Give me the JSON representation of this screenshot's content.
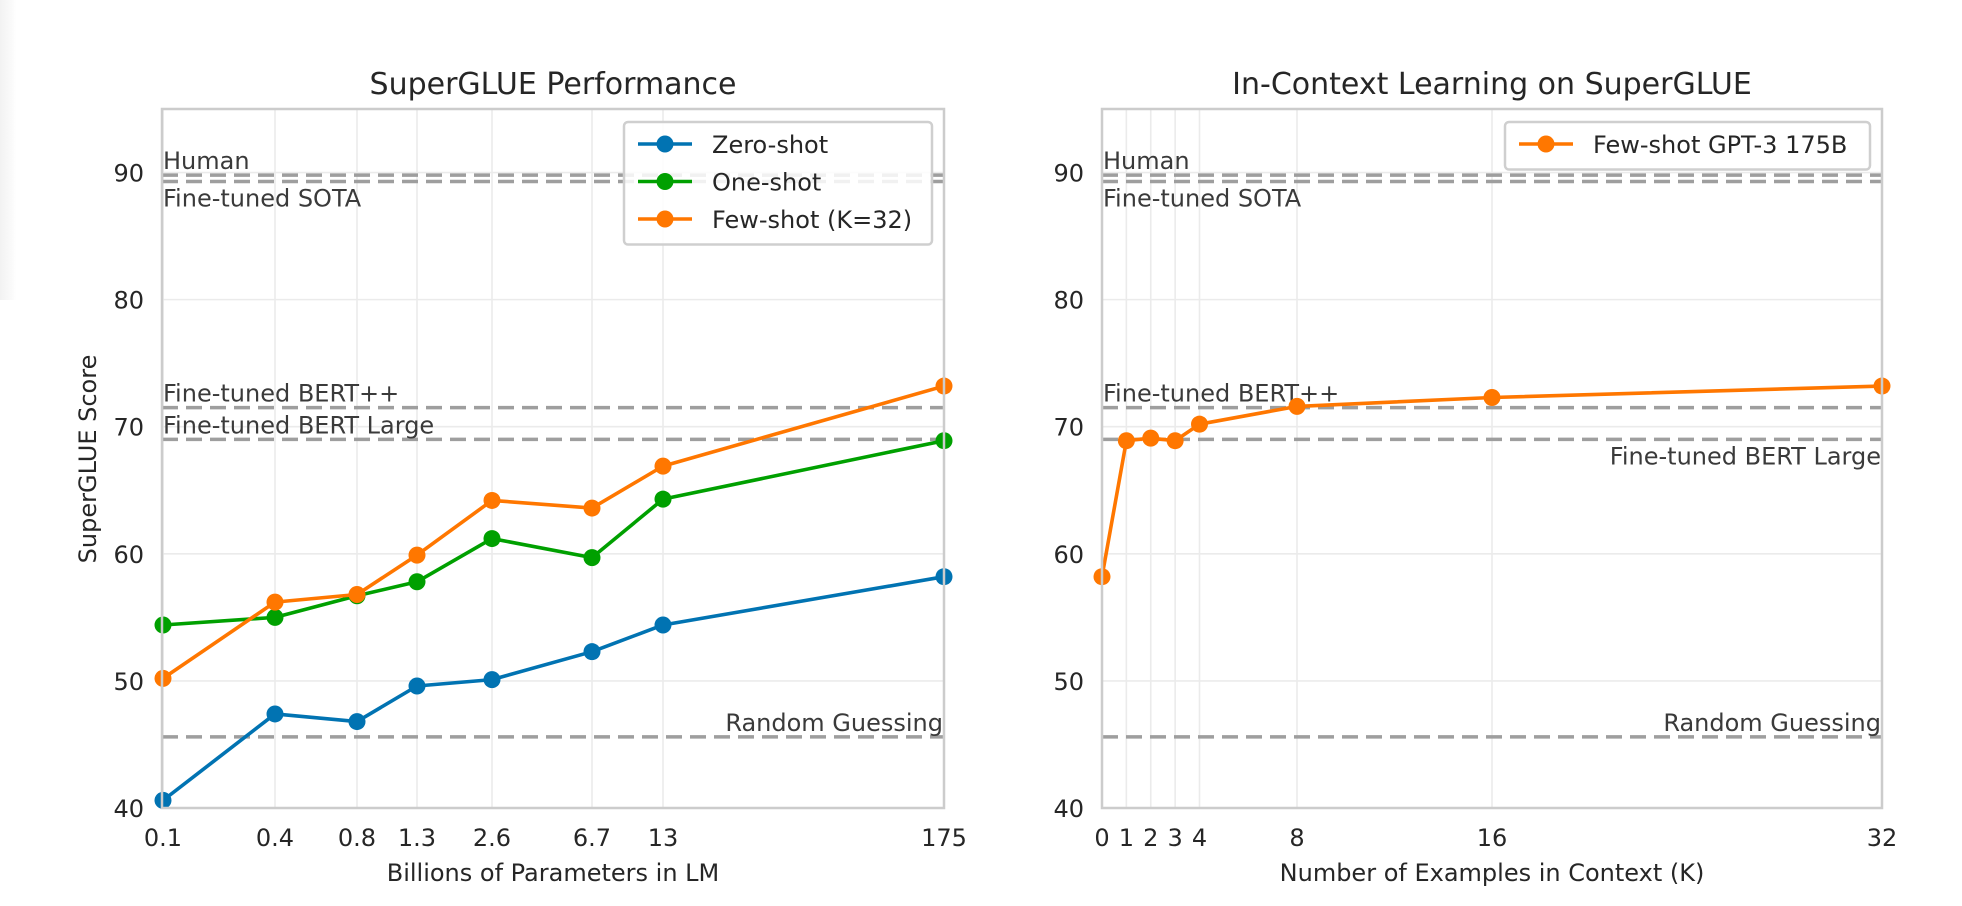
{
  "chart_data": [
    {
      "type": "line",
      "title": "SuperGLUE Performance",
      "xlabel": "Billions of Parameters in LM",
      "ylabel": "SuperGLUE Score",
      "x_scale": "categorical",
      "categories": [
        "0.1",
        "0.4",
        "0.8",
        "1.3",
        "2.6",
        "6.7",
        "13",
        "175"
      ],
      "ylim": [
        40,
        95
      ],
      "yticks": [
        40,
        50,
        60,
        70,
        80,
        90
      ],
      "grid": true,
      "legend_position": "top-right",
      "series": [
        {
          "name": "Zero-shot",
          "color": "#0173b2",
          "values": [
            40.6,
            47.4,
            46.8,
            49.6,
            50.1,
            52.3,
            54.4,
            58.2
          ]
        },
        {
          "name": "One-shot",
          "color": "#00a000",
          "values": [
            54.4,
            55.0,
            56.7,
            57.8,
            61.2,
            59.7,
            64.3,
            68.9
          ]
        },
        {
          "name": "Few-shot (K=32)",
          "color": "#ff7700",
          "values": [
            50.2,
            56.2,
            56.8,
            59.9,
            64.2,
            63.6,
            66.9,
            73.2
          ]
        }
      ],
      "reference_lines": [
        {
          "label": "Human",
          "value": 89.8,
          "label_side": "above-left"
        },
        {
          "label": "Fine-tuned SOTA",
          "value": 89.3,
          "label_side": "below-left"
        },
        {
          "label": "Fine-tuned BERT++",
          "value": 71.5,
          "label_side": "above-left"
        },
        {
          "label": "Fine-tuned BERT Large",
          "value": 69.0,
          "label_side": "above-left"
        },
        {
          "label": "Random Guessing",
          "value": 45.6,
          "label_side": "above-right"
        }
      ]
    },
    {
      "type": "line",
      "title": "In-Context Learning on SuperGLUE",
      "xlabel": "Number of Examples in Context (K)",
      "ylabel": "",
      "xlim": [
        0,
        32
      ],
      "xticks": [
        0,
        1,
        2,
        3,
        4,
        8,
        16,
        32
      ],
      "ylim": [
        40,
        95
      ],
      "yticks": [
        40,
        50,
        60,
        70,
        80,
        90
      ],
      "grid": true,
      "legend_position": "top-right",
      "series": [
        {
          "name": "Few-shot GPT-3 175B",
          "color": "#ff7700",
          "x": [
            0,
            1,
            2,
            3,
            4,
            8,
            16,
            32
          ],
          "values": [
            58.2,
            68.9,
            69.1,
            68.9,
            70.2,
            71.6,
            72.3,
            73.2
          ]
        }
      ],
      "reference_lines": [
        {
          "label": "Human",
          "value": 89.8,
          "label_side": "above-left"
        },
        {
          "label": "Fine-tuned SOTA",
          "value": 89.3,
          "label_side": "below-left"
        },
        {
          "label": "Fine-tuned BERT++",
          "value": 71.5,
          "label_side": "above-left"
        },
        {
          "label": "Fine-tuned BERT Large",
          "value": 69.0,
          "label_side": "below-right"
        },
        {
          "label": "Random Guessing",
          "value": 45.6,
          "label_side": "above-right"
        }
      ]
    }
  ]
}
